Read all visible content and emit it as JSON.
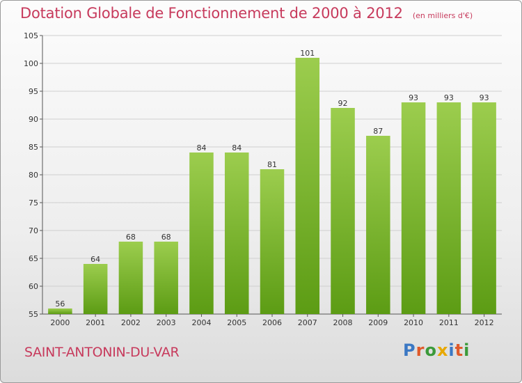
{
  "header": {
    "title": "Dotation Globale de Fonctionnement de 2000 à 2012",
    "subtitle": "(en milliers d'€)"
  },
  "commune": "SAINT-ANTONIN-DU-VAR",
  "logo": {
    "text": "Proxiti",
    "letter_colors": [
      "#3b78c4",
      "#e05a2a",
      "#3b9a3a",
      "#e8a800",
      "#3b78c4",
      "#e05a2a",
      "#3b9a3a"
    ]
  },
  "colors": {
    "bar_top": "#9ccd4e",
    "bar_bottom": "#5c9c14",
    "accent_text": "#c73a5c",
    "grid": "#cfcfcf"
  },
  "chart_data": {
    "type": "bar",
    "title": "Dotation Globale de Fonctionnement de 2000 à 2012",
    "subtitle": "(en milliers d'€)",
    "categories": [
      "2000",
      "2001",
      "2002",
      "2003",
      "2004",
      "2005",
      "2006",
      "2007",
      "2008",
      "2009",
      "2010",
      "2011",
      "2012"
    ],
    "values": [
      56,
      64,
      68,
      68,
      84,
      84,
      81,
      101,
      92,
      87,
      93,
      93,
      93
    ],
    "ylim": [
      55,
      105
    ],
    "yticks": [
      55,
      60,
      65,
      70,
      75,
      80,
      85,
      90,
      95,
      100,
      105
    ],
    "grid": true,
    "xlabel": "",
    "ylabel": ""
  }
}
